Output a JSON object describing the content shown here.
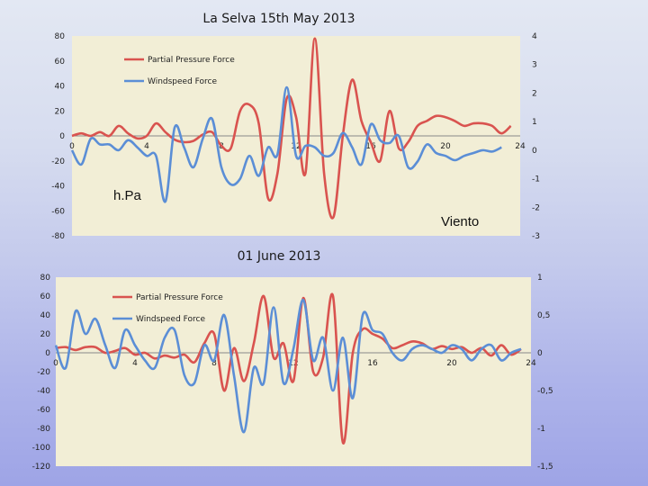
{
  "titles": {
    "top": "La Selva  15th May 2013",
    "bottom": "01 June 2013"
  },
  "colors": {
    "pressure": "#d9534f",
    "wind": "#5b8ed6",
    "plot_bg": "#f2eed6"
  },
  "chart_data": [
    {
      "type": "line",
      "title": "La Selva  15th May 2013",
      "xlim": [
        0,
        24
      ],
      "x_ticks": [
        0,
        4,
        8,
        12,
        16,
        20,
        24
      ],
      "ylim": [
        -80,
        80
      ],
      "y_ticks": [
        -80,
        -60,
        -40,
        -20,
        0,
        20,
        40,
        60,
        80
      ],
      "y2lim": [
        -3,
        4
      ],
      "y2_ticks": [
        -3,
        -2,
        -1,
        0,
        1,
        2,
        3,
        4
      ],
      "label_left": "h.Pa",
      "label_right": "Viento",
      "legend_position": "top-left",
      "grid": false,
      "series": [
        {
          "name": "Partial Pressure Force",
          "axis": "left",
          "x": [
            0,
            0.5,
            1,
            1.5,
            2,
            2.5,
            3,
            3.5,
            4,
            4.5,
            5,
            5.5,
            6,
            6.5,
            7,
            7.5,
            8,
            8.5,
            9,
            9.5,
            10,
            10.5,
            11,
            11.5,
            12,
            12.5,
            13,
            13.5,
            14,
            14.5,
            15,
            15.5,
            16,
            16.5,
            17,
            17.5,
            18,
            18.5,
            19,
            19.5,
            20,
            20.5,
            21,
            21.5,
            22,
            22.5,
            23,
            23.5
          ],
          "values": [
            0,
            2,
            0,
            3,
            0,
            8,
            2,
            -2,
            0,
            10,
            3,
            -3,
            -5,
            -4,
            1,
            3,
            -8,
            -10,
            20,
            25,
            10,
            -50,
            -30,
            30,
            15,
            -30,
            78,
            -30,
            -65,
            0,
            45,
            12,
            -5,
            -20,
            20,
            -10,
            -5,
            8,
            12,
            16,
            15,
            12,
            8,
            10,
            10,
            8,
            2,
            8
          ]
        },
        {
          "name": "Windspeed Force",
          "axis": "right",
          "x": [
            0,
            0.5,
            1,
            1.5,
            2,
            2.5,
            3,
            3.5,
            4,
            4.5,
            5,
            5.5,
            6,
            6.5,
            7,
            7.5,
            8,
            8.5,
            9,
            9.5,
            10,
            10.5,
            11,
            11.5,
            12,
            12.5,
            13,
            13.5,
            14,
            14.5,
            15,
            15.5,
            16,
            16.5,
            17,
            17.5,
            18,
            18.5,
            19,
            19.5,
            20,
            20.5,
            21,
            21.5,
            22,
            22.5,
            23
          ],
          "values": [
            0,
            -0.5,
            0.4,
            0.2,
            0.2,
            0,
            0.35,
            0.1,
            -0.2,
            -0.2,
            -1.8,
            0.8,
            0.1,
            -0.6,
            0.4,
            1.1,
            -0.6,
            -1.2,
            -1.0,
            -0.2,
            -0.9,
            0.1,
            -0.15,
            2.2,
            -0.2,
            0.15,
            0.1,
            -0.2,
            -0.1,
            0.6,
            0.1,
            -0.5,
            0.9,
            0.35,
            0.25,
            0.5,
            -0.6,
            -0.4,
            0.2,
            -0.1,
            -0.2,
            -0.35,
            -0.2,
            -0.1,
            0,
            -0.05,
            0.1
          ]
        }
      ]
    },
    {
      "type": "line",
      "title": "01 June 2013",
      "xlim": [
        0,
        24
      ],
      "x_ticks": [
        0,
        4,
        8,
        12,
        16,
        20,
        24
      ],
      "ylim": [
        -120,
        80
      ],
      "y_ticks": [
        -120,
        -100,
        -80,
        -60,
        -40,
        -20,
        0,
        20,
        40,
        60,
        80
      ],
      "y2lim": [
        -1.5,
        1
      ],
      "y2_ticks": [
        -1.5,
        -1,
        -0.5,
        0,
        0.5,
        1
      ],
      "y2_tick_labels": [
        "-1,5",
        "-1",
        "-0,5",
        "0",
        "0,5",
        "1"
      ],
      "legend_position": "top-left",
      "grid": false,
      "series": [
        {
          "name": "Partial Pressure Force",
          "axis": "left",
          "x": [
            0,
            0.5,
            1,
            1.5,
            2,
            2.5,
            3,
            3.5,
            4,
            4.5,
            5,
            5.5,
            6,
            6.5,
            7,
            7.5,
            8,
            8.5,
            9,
            9.5,
            10,
            10.5,
            11,
            11.5,
            12,
            12.5,
            13,
            13.5,
            14,
            14.5,
            15,
            15.5,
            16,
            16.5,
            17,
            17.5,
            18,
            18.5,
            19,
            19.5,
            20,
            20.5,
            21,
            21.5,
            22,
            22.5,
            23,
            23.5
          ],
          "values": [
            5,
            6,
            3,
            6,
            6,
            0,
            2,
            5,
            -2,
            0,
            -6,
            -3,
            -5,
            -2,
            -10,
            10,
            20,
            -40,
            5,
            -30,
            10,
            60,
            -5,
            10,
            -30,
            58,
            -20,
            -5,
            60,
            -95,
            0,
            25,
            20,
            15,
            5,
            8,
            12,
            10,
            4,
            7,
            4,
            6,
            0,
            5,
            -3,
            8,
            -2,
            4
          ]
        },
        {
          "name": "Windspeed Force",
          "axis": "right",
          "x": [
            0,
            0.5,
            1,
            1.5,
            2,
            2.5,
            3,
            3.5,
            4,
            4.5,
            5,
            5.5,
            6,
            6.5,
            7,
            7.5,
            8,
            8.5,
            9,
            9.5,
            10,
            10.5,
            11,
            11.5,
            12,
            12.5,
            13,
            13.5,
            14,
            14.5,
            15,
            15.5,
            16,
            16.5,
            17,
            17.5,
            18,
            18.5,
            19,
            19.5,
            20,
            20.5,
            21,
            21.5,
            22,
            22.5,
            23,
            23.5
          ],
          "values": [
            0.1,
            -0.2,
            0.55,
            0.25,
            0.45,
            0.1,
            -0.2,
            0.3,
            0.1,
            -0.1,
            -0.2,
            0.2,
            0.3,
            -0.3,
            -0.4,
            0.1,
            -0.1,
            0.5,
            -0.3,
            -1.05,
            -0.2,
            -0.4,
            0.6,
            -0.4,
            0.05,
            0.7,
            -0.1,
            0.2,
            -0.5,
            0.2,
            -0.6,
            0.5,
            0.3,
            0.25,
            0,
            -0.1,
            0.05,
            0.1,
            0.05,
            0,
            0.1,
            0.05,
            -0.1,
            0.05,
            0.1,
            -0.1,
            0,
            0.05
          ]
        }
      ]
    }
  ]
}
